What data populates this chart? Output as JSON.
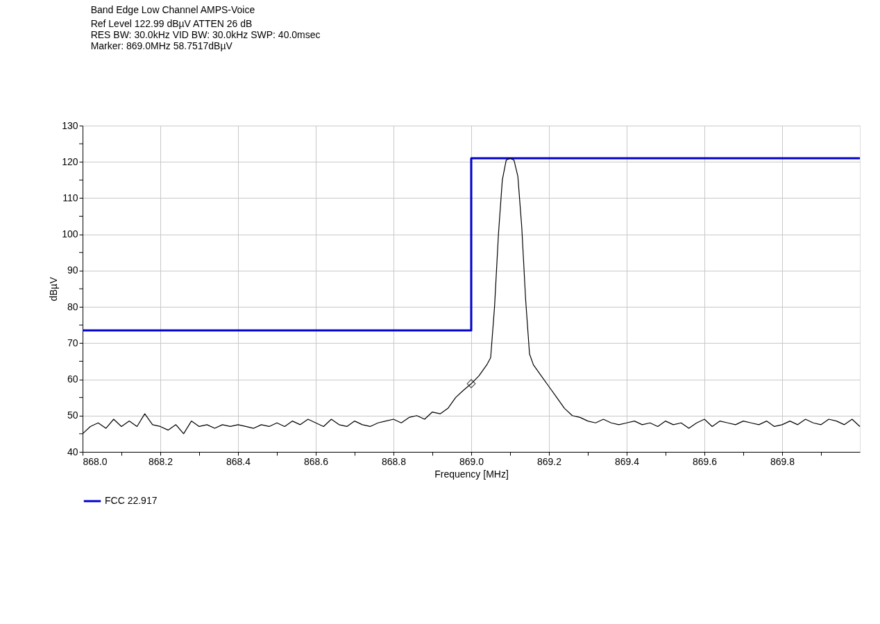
{
  "chart_data": {
    "type": "line",
    "title": "Band Edge Low Channel AMPS-Voice",
    "annotations": [
      "Ref Level 122.99 dBµV    ATTEN 26 dB",
      "RES BW: 30.0kHz  VID BW: 30.0kHz  SWP: 40.0msec",
      "Marker: 869.0MHz  58.7517dBµV"
    ],
    "xlabel": "Frequency [MHz]",
    "ylabel": "dBµV",
    "xlim": [
      868.0,
      870.0
    ],
    "ylim": [
      40,
      130
    ],
    "xticks": [
      {
        "value": 868.0,
        "label": "868.0"
      },
      {
        "value": 868.1,
        "label": null
      },
      {
        "value": 868.2,
        "label": "868.2"
      },
      {
        "value": 868.3,
        "label": null
      },
      {
        "value": 868.4,
        "label": "868.4"
      },
      {
        "value": 868.5,
        "label": null
      },
      {
        "value": 868.6,
        "label": "868.6"
      },
      {
        "value": 868.7,
        "label": null
      },
      {
        "value": 868.8,
        "label": "868.8"
      },
      {
        "value": 868.9,
        "label": null
      },
      {
        "value": 869.0,
        "label": "869.0"
      },
      {
        "value": 869.1,
        "label": null
      },
      {
        "value": 869.2,
        "label": "869.2"
      },
      {
        "value": 869.3,
        "label": null
      },
      {
        "value": 869.4,
        "label": "869.4"
      },
      {
        "value": 869.5,
        "label": null
      },
      {
        "value": 869.6,
        "label": "869.6"
      },
      {
        "value": 869.7,
        "label": null
      },
      {
        "value": 869.8,
        "label": "869.8"
      },
      {
        "value": 869.9,
        "label": null
      }
    ],
    "yticks": [
      40,
      {
        "value": 45,
        "label": null
      },
      50,
      {
        "value": 55,
        "label": null
      },
      60,
      {
        "value": 65,
        "label": null
      },
      70,
      {
        "value": 75,
        "label": null
      },
      80,
      {
        "value": 85,
        "label": null
      },
      90,
      {
        "value": 95,
        "label": null
      },
      100,
      {
        "value": 105,
        "label": null
      },
      110,
      {
        "value": 115,
        "label": null
      },
      120,
      {
        "value": 125,
        "label": null
      },
      130
    ],
    "grid": true,
    "legend": "bottom",
    "series": [
      {
        "name": "FCC 22.917",
        "type": "step",
        "color": "#0000cc",
        "x": [
          868.0,
          869.0,
          870.0
        ],
        "values": [
          73.5,
          121,
          121
        ]
      },
      {
        "type": "line",
        "color": "#000000",
        "x": [
          868.0,
          868.02,
          868.04,
          868.06,
          868.08,
          868.1,
          868.12,
          868.14,
          868.16,
          868.18,
          868.2,
          868.22,
          868.24,
          868.26,
          868.28,
          868.3,
          868.32,
          868.34,
          868.36,
          868.38,
          868.4,
          868.42,
          868.44,
          868.46,
          868.48,
          868.5,
          868.52,
          868.54,
          868.56,
          868.58,
          868.6,
          868.62,
          868.64,
          868.66,
          868.68,
          868.7,
          868.72,
          868.74,
          868.76,
          868.78,
          868.8,
          868.82,
          868.84,
          868.86,
          868.88,
          868.9,
          868.92,
          868.94,
          868.96,
          868.98,
          869.0,
          869.02,
          869.04,
          869.05,
          869.06,
          869.07,
          869.08,
          869.09,
          869.1,
          869.11,
          869.12,
          869.13,
          869.14,
          869.15,
          869.16,
          869.18,
          869.2,
          869.22,
          869.24,
          869.26,
          869.28,
          869.3,
          869.32,
          869.34,
          869.36,
          869.38,
          869.4,
          869.42,
          869.44,
          869.46,
          869.48,
          869.5,
          869.52,
          869.54,
          869.56,
          869.58,
          869.6,
          869.62,
          869.64,
          869.66,
          869.68,
          869.7,
          869.72,
          869.74,
          869.76,
          869.78,
          869.8,
          869.82,
          869.84,
          869.86,
          869.88,
          869.9,
          869.92,
          869.94,
          869.96,
          869.98,
          870.0
        ],
        "values": [
          45,
          47,
          48,
          46.5,
          49,
          47,
          48.5,
          47,
          50.5,
          47.5,
          47,
          46,
          47.5,
          45,
          48.5,
          47,
          47.5,
          46.5,
          47.5,
          47,
          47.5,
          47,
          46.5,
          47.5,
          47,
          48,
          47,
          48.5,
          47.5,
          49,
          48,
          47,
          49,
          47.5,
          47,
          48.5,
          47.5,
          47,
          48,
          48.5,
          49,
          48,
          49.5,
          50,
          49,
          51,
          50.5,
          52,
          55,
          57,
          58.8,
          61,
          64,
          66,
          80,
          100,
          115,
          120.5,
          121,
          120.5,
          116,
          102,
          82,
          67,
          64,
          61,
          58,
          55,
          52,
          50,
          49.5,
          48.5,
          48,
          49,
          48,
          47.5,
          48,
          48.5,
          47.5,
          48,
          47,
          48.5,
          47.5,
          48,
          46.5,
          48,
          49,
          47,
          48.5,
          48,
          47.5,
          48.5,
          48,
          47.5,
          48.5,
          47,
          47.5,
          48.5,
          47.5,
          49,
          48,
          47.5,
          49,
          48.5,
          47.5,
          49,
          47
        ]
      },
      {
        "type": "scatter",
        "marker": "diamond",
        "color": "#000000",
        "x": [
          869.0
        ],
        "values": [
          58.8
        ]
      }
    ]
  }
}
